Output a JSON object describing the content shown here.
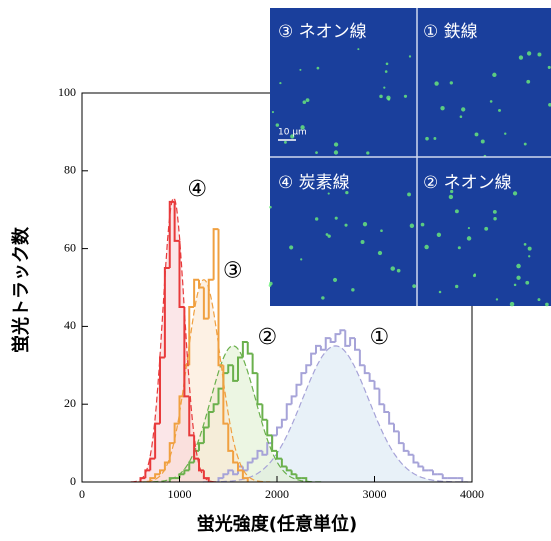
{
  "chart_data": {
    "type": "histogram",
    "xlabel": "蛍光強度(任意単位)",
    "ylabel": "蛍光トラック数",
    "xlim": [
      0,
      4000
    ],
    "xticks": [
      0,
      1000,
      2000,
      3000,
      4000
    ],
    "ylim": [
      0,
      100
    ],
    "yticks": [
      0,
      20,
      40,
      60,
      80,
      100
    ],
    "series": [
      {
        "label": "①",
        "color": "#a6a3d8",
        "fill": "#d8e8f4",
        "bins": [
          1400,
          1450,
          1500,
          1550,
          1600,
          1650,
          1700,
          1750,
          1800,
          1850,
          1900,
          1950,
          2000,
          2050,
          2100,
          2150,
          2200,
          2250,
          2300,
          2350,
          2400,
          2450,
          2500,
          2550,
          2600,
          2650,
          2700,
          2750,
          2800,
          2850,
          2900,
          2950,
          3000,
          3050,
          3100,
          3150,
          3200,
          3250,
          3300,
          3350,
          3400,
          3450,
          3500,
          3550,
          3600,
          3650,
          3700,
          3750,
          3800,
          3850,
          3900
        ],
        "values": [
          1,
          2,
          3,
          2,
          4,
          3,
          5,
          6,
          8,
          7,
          10,
          12,
          14,
          16,
          20,
          22,
          25,
          28,
          30,
          33,
          35,
          34,
          37,
          36,
          38,
          39,
          35,
          37,
          34,
          30,
          28,
          26,
          24,
          20,
          18,
          15,
          13,
          10,
          8,
          7,
          5,
          4,
          3,
          3,
          2,
          2,
          1,
          1,
          1,
          1
        ],
        "fit": {
          "mean": 2600,
          "sd": 340,
          "peak": 35
        }
      },
      {
        "label": "②",
        "color": "#6ab04c",
        "fill": "#dff0d0",
        "bins": [
          900,
          950,
          1000,
          1050,
          1100,
          1150,
          1200,
          1250,
          1300,
          1350,
          1400,
          1450,
          1500,
          1550,
          1600,
          1650,
          1700,
          1750,
          1800,
          1850,
          1900,
          1950,
          2000,
          2050,
          2100,
          2150,
          2200,
          2250,
          2300
        ],
        "values": [
          1,
          1,
          2,
          3,
          5,
          8,
          10,
          14,
          18,
          20,
          24,
          28,
          30,
          26,
          32,
          36,
          33,
          28,
          20,
          16,
          12,
          8,
          6,
          4,
          3,
          2,
          1,
          1
        ],
        "fit": {
          "mean": 1550,
          "sd": 230,
          "peak": 35
        }
      },
      {
        "label": "③",
        "color": "#f0a040",
        "fill": "#fbe8d2",
        "bins": [
          700,
          750,
          800,
          850,
          900,
          950,
          1000,
          1050,
          1100,
          1150,
          1200,
          1250,
          1300,
          1350,
          1400,
          1450,
          1500,
          1550,
          1600,
          1650,
          1700
        ],
        "values": [
          1,
          2,
          3,
          5,
          10,
          15,
          22,
          30,
          45,
          52,
          50,
          42,
          52,
          65,
          30,
          15,
          8,
          5,
          3,
          1
        ],
        "fit": {
          "mean": 1250,
          "sd": 170,
          "peak": 52
        }
      },
      {
        "label": "④",
        "color": "#e8393a",
        "fill": "#f8d6d8",
        "bins": [
          600,
          650,
          700,
          750,
          800,
          850,
          900,
          950,
          1000,
          1050,
          1100,
          1150,
          1200,
          1250,
          1300
        ],
        "values": [
          1,
          3,
          6,
          15,
          32,
          55,
          72,
          62,
          45,
          22,
          12,
          6,
          3,
          1
        ],
        "fit": {
          "mean": 940,
          "sd": 110,
          "peak": 73
        }
      }
    ]
  },
  "inset": {
    "panels": [
      "③ ネオン線",
      "① 鉄線",
      "④ 炭素線",
      "② ネオン線"
    ],
    "scale_bar": "10 μm"
  }
}
